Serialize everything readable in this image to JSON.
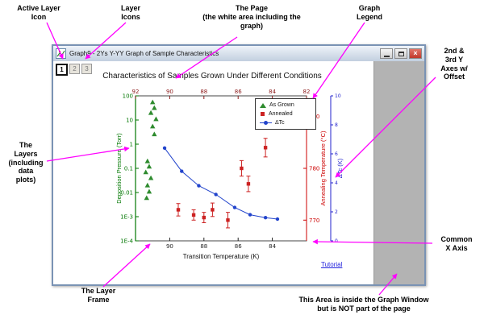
{
  "annotation_color": "#ff00ff",
  "window": {
    "title": "Graph9 - 2Ys Y-YY Graph of Sample Characteristics",
    "controls": {
      "close": "×"
    },
    "layer_icons": [
      "1",
      "2",
      "3"
    ],
    "active_layer": "1",
    "tutorial_link": "Tutorial"
  },
  "graph": {
    "title": "Characteristics of Samples Grown Under Different Conditions"
  },
  "chart_data": {
    "type": "scatter",
    "title": "Characteristics of Samples Grown Under Different Conditions",
    "x_axis": {
      "label": "Transition Temperature (K)",
      "min": 82,
      "max": 92,
      "reversed": true,
      "top_ticks": [
        92,
        90,
        88,
        86,
        84,
        82
      ],
      "bottom_ticks": [
        90,
        88,
        86,
        84
      ],
      "top_color": "#8b1a1a"
    },
    "y_left": {
      "label": "Deposition Pressure (Torr)",
      "scale": "log",
      "min": 0.0001,
      "max": 100,
      "ticks": [
        "100",
        "10",
        "1",
        "0.1",
        "0.01",
        "1E-3",
        "1E-4"
      ],
      "color": "#007700"
    },
    "y_right": {
      "label": "Annealing Temperature (°C)",
      "min": 766,
      "max": 794,
      "ticks": [
        770,
        780,
        790
      ],
      "color": "#cc0000"
    },
    "y_right2": {
      "label": "ΔTc (K)",
      "min": 0,
      "max": 10,
      "ticks": [
        0,
        2,
        4,
        6,
        8,
        10
      ],
      "color": "#2222cc",
      "offset": 30
    },
    "series": [
      {
        "name": "As Grown",
        "type": "scatter",
        "marker": "triangle",
        "color": "#2e8b2e",
        "axis": "left",
        "points": [
          [
            91.0,
            55
          ],
          [
            90.9,
            32
          ],
          [
            91.1,
            20
          ],
          [
            90.8,
            11
          ],
          [
            91.0,
            5.5
          ],
          [
            90.9,
            2.6
          ],
          [
            91.3,
            0.2
          ],
          [
            91.2,
            0.12
          ],
          [
            91.4,
            0.07
          ],
          [
            91.1,
            0.04
          ],
          [
            91.3,
            0.02
          ],
          [
            91.2,
            0.011
          ],
          [
            91.35,
            0.006
          ]
        ]
      },
      {
        "name": "Annealed",
        "type": "scatter",
        "marker": "square",
        "color": "#cc2222",
        "axis": "right",
        "points": [
          [
            89.5,
            772,
            1.2
          ],
          [
            88.6,
            771,
            1.0
          ],
          [
            88.0,
            770.5,
            1.0
          ],
          [
            87.5,
            772,
            1.3
          ],
          [
            86.6,
            770,
            1.5
          ],
          [
            85.8,
            780,
            1.5
          ],
          [
            85.4,
            777,
            1.5
          ],
          [
            84.4,
            784,
            1.8
          ]
        ]
      },
      {
        "name": "ΔTc",
        "type": "line-scatter",
        "marker": "circle",
        "color": "#2244cc",
        "axis": "right2",
        "points": [
          [
            90.3,
            6.4
          ],
          [
            89.3,
            4.8
          ],
          [
            88.3,
            3.8
          ],
          [
            87.3,
            3.2
          ],
          [
            86.2,
            2.3
          ],
          [
            85.3,
            1.8
          ],
          [
            84.4,
            1.6
          ],
          [
            83.7,
            1.5
          ]
        ]
      }
    ],
    "legend": {
      "position": "top-right-inside",
      "entries": [
        "As Grown",
        "Annealed",
        "ΔTc"
      ]
    }
  },
  "annotations": {
    "active_layer_icon": "Active Layer\nIcon",
    "layer_icons": "Layer\nIcons",
    "the_page": "The Page\n(the white area including the\ngraph)",
    "graph_legend": "Graph\nLegend",
    "y_axes_offset": "2nd &\n3rd Y\nAxes w/\nOffset",
    "the_layers": "The\nLayers\n(including\ndata\nplots)",
    "common_x_axis": "Common\nX Axis",
    "layer_frame": "The Layer\nFrame",
    "outside_page_note": "This Area is inside the Graph Window\nbut is NOT part of the page"
  }
}
